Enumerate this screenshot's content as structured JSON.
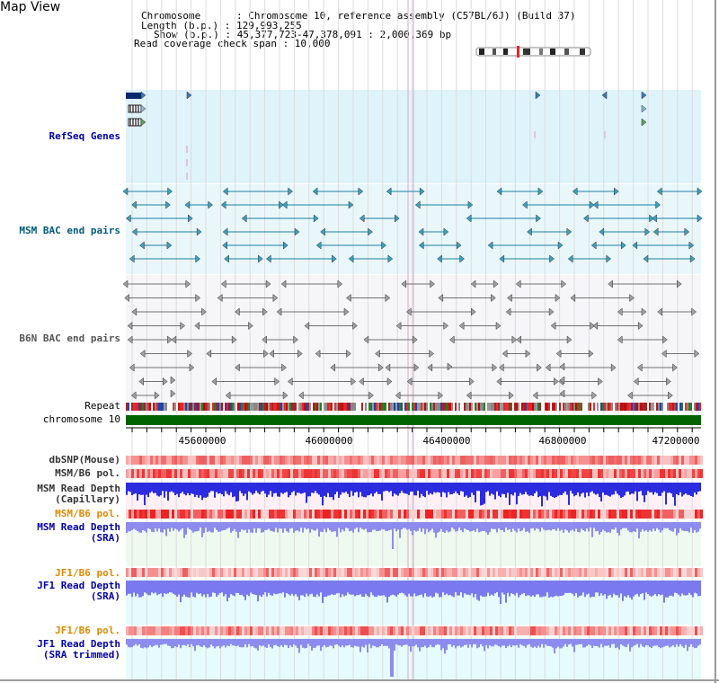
{
  "header": {
    "title": "Map View",
    "chromosome_line": "Chromosome      : Chromosome 10, reference assembly (C57BL/6J) (Build 37)",
    "length_line": "Length (b.p.) : 129,993,255",
    "show_line": "Show (b.p.) : 45,377,723-47,378,091 : 2,000,369 bp",
    "coverage_line": "Read coverage check span : 10,000"
  },
  "tracks": {
    "refseq": "RefSeq Genes",
    "msm_bac": "MSM BAC end pairs",
    "b6n_bac": "B6N BAC end pairs",
    "repeat": "Repeat",
    "chromosome": "chromosome 10",
    "dbsnp": "dbSNP(Mouse)",
    "msm_b6_pol_1": "MSM/B6 pol.",
    "msm_depth_cap_1": "MSM Read Depth",
    "msm_depth_cap_2": "(Capillary)",
    "msm_b6_pol_2": "MSM/B6 pol.",
    "msm_depth_sra_1": "MSM Read Depth",
    "msm_depth_sra_2": "(SRA)",
    "jf1_b6_pol_1": "JF1/B6 pol.",
    "jf1_depth_sra_1": "JF1 Read Depth",
    "jf1_depth_sra_2": "(SRA)",
    "jf1_b6_pol_2": "JF1/B6 pol.",
    "jf1_depth_trim_1": "JF1 Read Depth",
    "jf1_depth_trim_2": "(SRA trimmed)"
  },
  "axis": {
    "ticks": [
      "45600000",
      "46000000",
      "46400000",
      "46800000",
      "47200000"
    ]
  },
  "colors": {
    "label_blue": "#0000aa",
    "label_teal": "#005a7a",
    "label_orange": "#e08a00",
    "label_gray": "#333333",
    "chromosome_bar": "#006400",
    "refseq_bg": "#dff3fb",
    "bac_bg": "#eef8fb",
    "sra_bg": "#eefaf0",
    "jf1_bg": "#e6fbfb",
    "depth_blue": "#2222dd",
    "depth_light": "#7777ee"
  }
}
